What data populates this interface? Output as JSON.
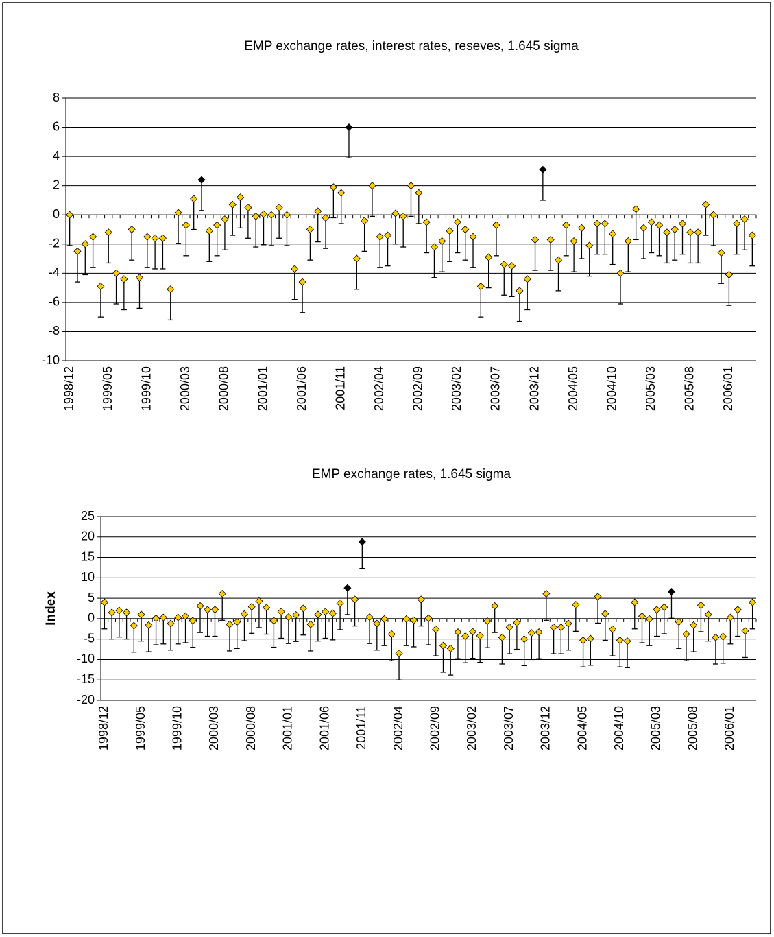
{
  "chart_data": [
    {
      "type": "errorbar",
      "title": "EMP exchange rates, interest rates, reseves, 1.645 sigma",
      "categories": [
        "1998/12",
        null,
        null,
        null,
        null,
        "1999/05",
        null,
        null,
        null,
        null,
        "1999/10",
        null,
        null,
        null,
        null,
        "2000/03",
        null,
        null,
        null,
        null,
        "2000/08",
        null,
        null,
        null,
        null,
        "2001/01",
        null,
        null,
        null,
        null,
        "2001/06",
        null,
        null,
        null,
        null,
        "2001/11",
        null,
        null,
        null,
        null,
        "2002/04",
        null,
        null,
        null,
        null,
        "2002/09",
        null,
        null,
        null,
        null,
        "2003/02",
        null,
        null,
        null,
        null,
        "2003/07",
        null,
        null,
        null,
        null,
        "2003/12",
        null,
        null,
        null,
        null,
        "2004/05",
        null,
        null,
        null,
        null,
        "2004/10",
        null,
        null,
        null,
        null,
        "2005/03",
        null,
        null,
        null,
        null,
        "2005/08",
        null,
        null,
        null,
        null,
        "2006/01",
        null,
        null,
        null
      ],
      "values": [
        0,
        -2.5,
        -2.0,
        -1.5,
        -4.9,
        -1.2,
        -4.0,
        -4.4,
        -1.0,
        -4.3,
        -1.5,
        -1.6,
        -1.6,
        -5.1,
        0.15,
        -0.7,
        1.1,
        2.4,
        -1.1,
        -0.7,
        -0.3,
        0.7,
        1.2,
        0.5,
        -0.1,
        0.05,
        0,
        0.5,
        0,
        -3.7,
        -4.6,
        -1.0,
        0.25,
        -0.2,
        1.9,
        1.5,
        6.0,
        -3.0,
        -0.4,
        2.0,
        -1.5,
        -1.4,
        0.1,
        -0.1,
        2.0,
        1.5,
        -0.5,
        -2.2,
        -1.8,
        -1.1,
        -0.5,
        -1.0,
        -1.5,
        -4.9,
        -2.9,
        -0.7,
        -3.4,
        -3.5,
        -5.2,
        -4.4,
        -1.7,
        3.1,
        -1.7,
        -3.1,
        -0.7,
        -1.8,
        -0.9,
        -2.1,
        -0.6,
        -0.6,
        -1.3,
        -4.0,
        -1.8,
        0.4,
        -0.9,
        -0.5,
        -0.7,
        -1.2,
        -1.0,
        -0.6,
        -1.2,
        -1.2,
        0.7,
        0,
        -2.6,
        -4.1,
        -0.6,
        -0.3,
        -1.4
      ],
      "errors": [
        2.1,
        2.1,
        2.1,
        2.1,
        2.1,
        2.1,
        2.1,
        2.1,
        2.1,
        2.1,
        2.1,
        2.1,
        2.1,
        2.1,
        2.1,
        2.1,
        2.1,
        2.1,
        2.1,
        2.1,
        2.1,
        2.1,
        2.1,
        2.1,
        2.1,
        2.1,
        2.1,
        2.1,
        2.1,
        2.1,
        2.1,
        2.1,
        2.1,
        2.1,
        2.1,
        2.1,
        2.1,
        2.1,
        2.1,
        2.1,
        2.1,
        2.1,
        2.1,
        2.1,
        2.1,
        2.1,
        2.1,
        2.1,
        2.1,
        2.1,
        2.1,
        2.1,
        2.1,
        2.1,
        2.1,
        2.1,
        2.1,
        2.1,
        2.1,
        2.1,
        2.1,
        2.1,
        2.1,
        2.1,
        2.1,
        2.1,
        2.1,
        2.1,
        2.1,
        2.1,
        2.1,
        2.1,
        2.1,
        2.1,
        2.1,
        2.1,
        2.1,
        2.1,
        2.1,
        2.1,
        2.1,
        2.1,
        2.1,
        2.1,
        2.1,
        2.1,
        2.1,
        2.1,
        2.1
      ],
      "color": "#ffcc00",
      "highlight_color": "#000000",
      "highlight": [
        17,
        36,
        61
      ],
      "ylim": [
        -10,
        8
      ],
      "yticks": [
        -10,
        -8,
        -6,
        -4,
        -2,
        0,
        2,
        4,
        6,
        8
      ],
      "grid": true
    },
    {
      "type": "errorbar",
      "title": "EMP exchange rates, 1.645 sigma",
      "y_label": "Index",
      "categories": [
        "1998/12",
        null,
        null,
        null,
        null,
        "1999/05",
        null,
        null,
        null,
        null,
        "1999/10",
        null,
        null,
        null,
        null,
        "2000/03",
        null,
        null,
        null,
        null,
        "2000/08",
        null,
        null,
        null,
        null,
        "2001/01",
        null,
        null,
        null,
        null,
        "2001/06",
        null,
        null,
        null,
        null,
        "2001/11",
        null,
        null,
        null,
        null,
        "2002/04",
        null,
        null,
        null,
        null,
        "2002/09",
        null,
        null,
        null,
        null,
        "2003/02",
        null,
        null,
        null,
        null,
        "2003/07",
        null,
        null,
        null,
        null,
        "2003/12",
        null,
        null,
        null,
        null,
        "2004/05",
        null,
        null,
        null,
        null,
        "2004/10",
        null,
        null,
        null,
        null,
        "2005/03",
        null,
        null,
        null,
        null,
        "2005/08",
        null,
        null,
        null,
        null,
        "2006/01",
        null,
        null,
        null
      ],
      "values": [
        4.0,
        1.5,
        2.0,
        1.5,
        -1.7,
        1.0,
        -1.6,
        0.1,
        0.3,
        -1.2,
        0.3,
        0.6,
        -0.5,
        3.1,
        2.2,
        2.2,
        6.1,
        -1.4,
        -0.8,
        1.1,
        2.9,
        4.3,
        2.7,
        -0.5,
        1.7,
        0.4,
        0.9,
        2.5,
        -1.4,
        1.0,
        1.7,
        1.3,
        3.8,
        7.5,
        4.7,
        18.8,
        0.4,
        -1.2,
        -0.1,
        -3.8,
        -8.5,
        -0.1,
        -0.4,
        4.7,
        0.1,
        -2.6,
        -6.6,
        -7.3,
        -3.3,
        -4.3,
        -3.2,
        -4.2,
        -0.6,
        3.1,
        -4.6,
        -2.1,
        -1.0,
        -5.0,
        -3.5,
        -3.3,
        6.1,
        -2.1,
        -2.1,
        -1.2,
        3.4,
        -5.3,
        -4.9,
        5.4,
        1.2,
        -2.6,
        -5.3,
        -5.5,
        4.0,
        0.6,
        -0.1,
        2.2,
        2.8,
        6.6,
        -0.8,
        -3.8,
        -1.6,
        3.3,
        1.0,
        -4.6,
        -4.4,
        0.3,
        2.2,
        -3.0,
        4.0
      ],
      "errors": [
        6.5,
        6.5,
        6.5,
        6.5,
        6.5,
        6.5,
        6.5,
        6.5,
        6.5,
        6.5,
        6.5,
        6.5,
        6.5,
        6.5,
        6.5,
        6.5,
        6.5,
        6.5,
        6.5,
        6.5,
        6.5,
        6.5,
        6.5,
        6.5,
        6.5,
        6.5,
        6.5,
        6.5,
        6.5,
        6.5,
        6.5,
        6.5,
        6.5,
        6.5,
        6.5,
        6.5,
        6.5,
        6.5,
        6.5,
        6.5,
        6.5,
        6.5,
        6.5,
        6.5,
        6.5,
        6.5,
        6.5,
        6.5,
        6.5,
        6.5,
        6.5,
        6.5,
        6.5,
        6.5,
        6.5,
        6.5,
        6.5,
        6.5,
        6.5,
        6.5,
        6.5,
        6.5,
        6.5,
        6.5,
        6.5,
        6.5,
        6.5,
        6.5,
        6.5,
        6.5,
        6.5,
        6.5,
        6.5,
        6.5,
        6.5,
        6.5,
        6.5,
        6.5,
        6.5,
        6.5,
        6.5,
        6.5,
        6.5,
        6.5,
        6.5,
        6.5,
        6.5,
        6.5,
        6.5
      ],
      "color": "#ffcc00",
      "highlight_color": "#000000",
      "highlight": [
        33,
        35,
        77
      ],
      "ylim": [
        -20,
        25
      ],
      "yticks": [
        -20,
        -15,
        -10,
        -5,
        0,
        5,
        10,
        15,
        20,
        25
      ],
      "grid": true
    }
  ]
}
